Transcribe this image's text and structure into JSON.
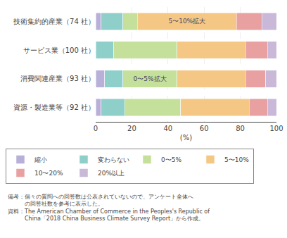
{
  "chart_data": {
    "type": "bar",
    "orientation": "horizontal",
    "stacked": true,
    "categories": [
      "技術集約的産業（74 社）",
      "サービス業（100 社）",
      "消費関連産業（93 社）",
      "資源・製造業等（92 社）"
    ],
    "series": [
      {
        "name": "縮小",
        "color": "#b8b0d8",
        "values": [
          3,
          0,
          5,
          3
        ]
      },
      {
        "name": "変わらない",
        "color": "#8ecfca",
        "values": [
          12,
          10,
          10,
          13
        ]
      },
      {
        "name": "0〜5%",
        "color": "#c5e09a",
        "values": [
          8,
          35,
          30,
          31
        ]
      },
      {
        "name": "5〜10%",
        "color": "#f5c785",
        "values": [
          55,
          38,
          38,
          38
        ]
      },
      {
        "name": "10〜20%",
        "color": "#e8a0a0",
        "values": [
          14,
          12,
          11,
          10
        ]
      },
      {
        "name": "20%以上",
        "color": "#c9b8d8",
        "values": [
          8,
          5,
          6,
          5
        ]
      }
    ],
    "annotations": [
      {
        "category": "技術集約的産業（74 社）",
        "series": "5〜10%",
        "text": "5〜10%拡大"
      },
      {
        "category": "消費関連産業（93 社）",
        "series": "0〜5%",
        "text": "0〜5%拡大"
      }
    ],
    "xlabel": "(%)",
    "xlim": [
      0,
      100
    ],
    "xticks": [
      0,
      20,
      40,
      60,
      80,
      100
    ],
    "grid": true,
    "legend": "bottom",
    "notes": [
      "備考：個々の質問への回答数は公表されていないので、アンケート全体へ",
      "　　　の回答社数を参考に表示した。",
      "資料：The American Chamber of Commerce in the Peoples's Republic of",
      "　　　China「2018 China Business Climate Survey Report」から作成。"
    ]
  }
}
